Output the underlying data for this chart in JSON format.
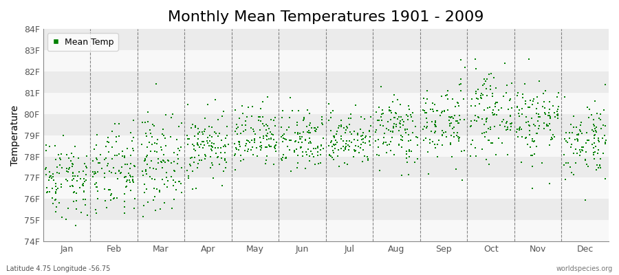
{
  "title": "Monthly Mean Temperatures 1901 - 2009",
  "ylabel": "Temperature",
  "xlabel_months": [
    "Jan",
    "Feb",
    "Mar",
    "Apr",
    "May",
    "Jun",
    "Jul",
    "Aug",
    "Sep",
    "Oct",
    "Nov",
    "Dec"
  ],
  "ytick_labels": [
    "74F",
    "75F",
    "76F",
    "77F",
    "78F",
    "79F",
    "80F",
    "81F",
    "82F",
    "83F",
    "84F"
  ],
  "ytick_values": [
    74,
    75,
    76,
    77,
    78,
    79,
    80,
    81,
    82,
    83,
    84
  ],
  "ylim": [
    74,
    84
  ],
  "footer_left": "Latitude 4.75 Longitude -56.75",
  "footer_right": "worldspecies.org",
  "legend_label": "Mean Temp",
  "dot_color": "#008000",
  "bg_color": "#ffffff",
  "band_color_gray": "#e8e8e8",
  "band_color_white": "#f5f5f5",
  "title_fontsize": 16,
  "axis_fontsize": 10,
  "tick_fontsize": 9,
  "n_years": 109,
  "month_means": [
    77.0,
    77.2,
    77.8,
    78.5,
    78.8,
    78.7,
    78.8,
    79.2,
    79.6,
    80.0,
    79.7,
    78.8
  ],
  "month_stds": [
    0.9,
    1.0,
    1.1,
    0.8,
    0.7,
    0.7,
    0.6,
    0.8,
    0.9,
    0.9,
    1.0,
    0.9
  ],
  "random_seed": 42
}
